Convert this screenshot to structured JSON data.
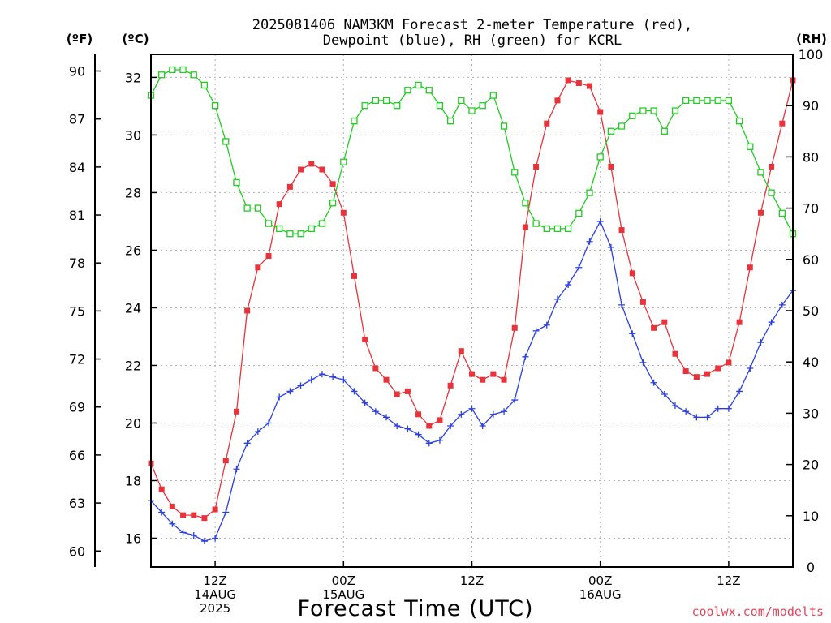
{
  "title_line1": "2025081406 NAM3KM Forecast 2-meter Temperature (red),",
  "title_line2": "Dewpoint (blue), RH (green) for KCRL",
  "units": {
    "f": "(ºF)",
    "c": "(ºC)",
    "rh": "(RH)"
  },
  "xlabel": "Forecast Time (UTC)",
  "credit": "coolwx.com/modelts",
  "colors": {
    "temperature": "#e8333a",
    "dewpoint": "#2a3fe0",
    "rh": "#22cc22",
    "grid": "#b0b0b0"
  },
  "chart_data": {
    "type": "line",
    "title": "2025081406 NAM3KM Forecast 2-meter Temperature (red), Dewpoint (blue), RH (green) for KCRL",
    "xlabel": "Forecast Time (UTC)",
    "x_start": "2025-08-14 06Z",
    "x_step_hours": 1,
    "xlim_hours": [
      0,
      60
    ],
    "x_ticks": [
      {
        "hour": 6,
        "lines": [
          "12Z",
          "14AUG",
          "2025"
        ]
      },
      {
        "hour": 18,
        "lines": [
          "00Z",
          "15AUG"
        ]
      },
      {
        "hour": 30,
        "lines": [
          "12Z"
        ]
      },
      {
        "hour": 42,
        "lines": [
          "00Z",
          "16AUG"
        ]
      },
      {
        "hour": 54,
        "lines": [
          "12Z"
        ]
      }
    ],
    "y_left_celsius": {
      "ylim": [
        15,
        32.8
      ],
      "ticks": [
        16,
        18,
        20,
        22,
        24,
        26,
        28,
        30,
        32
      ]
    },
    "y_left_fahrenheit": {
      "ticks": [
        60,
        63,
        66,
        69,
        72,
        75,
        78,
        81,
        84,
        87,
        90
      ]
    },
    "y_right_rh": {
      "ylim": [
        0,
        100
      ],
      "ticks": [
        0,
        10,
        20,
        30,
        40,
        50,
        60,
        70,
        80,
        90,
        100
      ]
    },
    "grid": true,
    "series": [
      {
        "name": "Temperature",
        "axis": "celsius",
        "marker": "filled-square",
        "values": [
          18.6,
          17.7,
          17.1,
          16.8,
          16.8,
          16.7,
          17.0,
          18.7,
          20.4,
          23.9,
          25.4,
          25.8,
          27.6,
          28.2,
          28.8,
          29.0,
          28.8,
          28.3,
          27.3,
          25.1,
          22.9,
          21.9,
          21.5,
          21.0,
          21.1,
          20.3,
          19.9,
          20.1,
          21.3,
          22.5,
          21.7,
          21.5,
          21.7,
          21.5,
          23.3,
          26.8,
          28.9,
          30.4,
          31.2,
          31.9,
          31.8,
          31.7,
          30.8,
          28.9,
          26.7,
          25.2,
          24.2,
          23.3,
          23.5,
          22.4,
          21.8,
          21.6,
          21.7,
          21.9,
          22.1,
          23.5,
          25.4,
          27.3,
          28.9,
          30.4,
          31.9
        ]
      },
      {
        "name": "Dewpoint",
        "axis": "celsius",
        "marker": "plus",
        "values": [
          17.3,
          16.9,
          16.5,
          16.2,
          16.1,
          15.9,
          16.0,
          16.9,
          18.4,
          19.3,
          19.7,
          20.0,
          20.9,
          21.1,
          21.3,
          21.5,
          21.7,
          21.6,
          21.5,
          21.1,
          20.7,
          20.4,
          20.2,
          19.9,
          19.8,
          19.6,
          19.3,
          19.4,
          19.9,
          20.3,
          20.5,
          19.9,
          20.3,
          20.4,
          20.8,
          22.3,
          23.2,
          23.4,
          24.3,
          24.8,
          25.4,
          26.3,
          27.0,
          26.1,
          24.1,
          23.1,
          22.1,
          21.4,
          21.0,
          20.6,
          20.4,
          20.2,
          20.2,
          20.5,
          20.5,
          21.1,
          21.9,
          22.8,
          23.5,
          24.1,
          24.6
        ]
      },
      {
        "name": "RH",
        "axis": "rh",
        "marker": "open-square",
        "values": [
          92,
          96,
          97,
          97,
          96,
          94,
          90,
          83,
          75,
          70,
          70,
          67,
          66,
          65,
          65,
          66,
          67,
          71,
          79,
          87,
          90,
          91,
          91,
          90,
          93,
          94,
          93,
          90,
          87,
          91,
          89,
          90,
          92,
          86,
          77,
          71,
          67,
          66,
          66,
          66,
          69,
          73,
          80,
          85,
          86,
          88,
          89,
          89,
          85,
          89,
          91,
          91,
          91,
          91,
          91,
          87,
          82,
          77,
          73,
          69,
          65
        ]
      }
    ]
  }
}
